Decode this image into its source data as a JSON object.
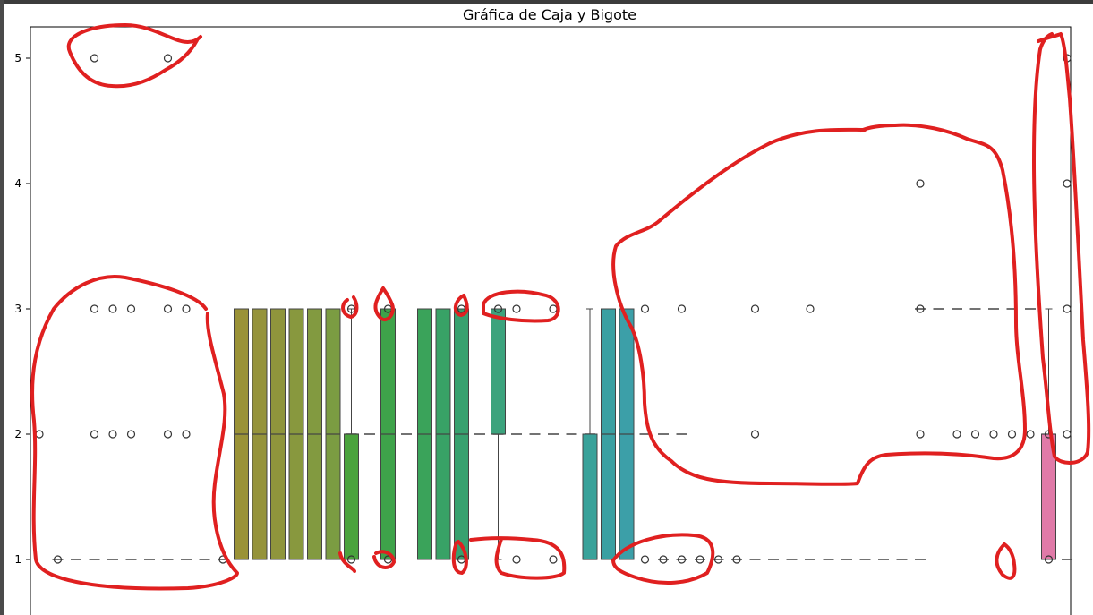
{
  "chart_data": {
    "type": "box",
    "title": "Gráfica de Caja y Bigote",
    "xlabel": "",
    "ylabel": "",
    "ylim": [
      0.75,
      5.25
    ],
    "yticks": [
      1,
      2,
      3,
      4,
      5
    ],
    "n_categories": 57,
    "categories": [],
    "boxes": [
      {
        "index": 11,
        "q1": 1,
        "median": 2,
        "q3": 3,
        "whisker_low": 1,
        "whisker_high": 3,
        "color": "#9a9237"
      },
      {
        "index": 12,
        "q1": 1,
        "median": 2,
        "q3": 3,
        "whisker_low": 1,
        "whisker_high": 3,
        "color": "#95933a"
      },
      {
        "index": 13,
        "q1": 1,
        "median": 2,
        "q3": 3,
        "whisker_low": 1,
        "whisker_high": 3,
        "color": "#8f953c"
      },
      {
        "index": 14,
        "q1": 1,
        "median": 2,
        "q3": 3,
        "whisker_low": 1,
        "whisker_high": 3,
        "color": "#88983e"
      },
      {
        "index": 15,
        "q1": 1,
        "median": 2,
        "q3": 3,
        "whisker_low": 1,
        "whisker_high": 3,
        "color": "#829a40"
      },
      {
        "index": 16,
        "q1": 1,
        "median": 2,
        "q3": 3,
        "whisker_low": 1,
        "whisker_high": 3,
        "color": "#7b9c42"
      },
      {
        "index": 17,
        "q1": 1,
        "median": 2,
        "q3": 2,
        "whisker_low": 1,
        "whisker_high": 3,
        "color": "#4aa33d"
      },
      {
        "index": 19,
        "q1": 1,
        "median": 2,
        "q3": 3,
        "whisker_low": 1,
        "whisker_high": 3,
        "color": "#3ea34a"
      },
      {
        "index": 21,
        "q1": 1,
        "median": 2,
        "q3": 3,
        "whisker_low": 1,
        "whisker_high": 3,
        "color": "#3aa35a"
      },
      {
        "index": 22,
        "q1": 1,
        "median": 2,
        "q3": 3,
        "whisker_low": 1,
        "whisker_high": 3,
        "color": "#38a266"
      },
      {
        "index": 23,
        "q1": 1,
        "median": 2,
        "q3": 3,
        "whisker_low": 1,
        "whisker_high": 3,
        "color": "#38a16f"
      },
      {
        "index": 25,
        "q1": 2,
        "median": 2,
        "q3": 3,
        "whisker_low": 1,
        "whisker_high": 3,
        "color": "#3ca37d"
      },
      {
        "index": 30,
        "q1": 1,
        "median": 1,
        "q3": 2,
        "whisker_low": 1,
        "whisker_high": 3,
        "color": "#39a29a"
      },
      {
        "index": 31,
        "q1": 1,
        "median": 2,
        "q3": 3,
        "whisker_low": 1,
        "whisker_high": 3,
        "color": "#3aa0a2"
      },
      {
        "index": 32,
        "q1": 1,
        "median": 2,
        "q3": 3,
        "whisker_low": 1,
        "whisker_high": 3,
        "color": "#3c9fa8"
      },
      {
        "index": 55,
        "q1": 1,
        "median": 2,
        "q3": 2,
        "whisker_low": 1,
        "whisker_high": 3,
        "color": "#e07aa8"
      }
    ],
    "flat_lines": [
      {
        "y": 1,
        "from_index": 1,
        "to_index": 10
      },
      {
        "y": 2,
        "from_index": 11,
        "to_index": 35
      },
      {
        "y": 1,
        "from_index": 34,
        "to_index": 48
      },
      {
        "y": 3,
        "from_index": 48,
        "to_index": 54
      },
      {
        "y": 1,
        "from_index": 56,
        "to_index": 56
      }
    ],
    "outliers": [
      {
        "index": 0,
        "y": 2
      },
      {
        "index": 1,
        "y": 1
      },
      {
        "index": 3,
        "y": 5
      },
      {
        "index": 3,
        "y": 3
      },
      {
        "index": 3,
        "y": 2
      },
      {
        "index": 4,
        "y": 3
      },
      {
        "index": 4,
        "y": 2
      },
      {
        "index": 5,
        "y": 3
      },
      {
        "index": 5,
        "y": 2
      },
      {
        "index": 7,
        "y": 5
      },
      {
        "index": 7,
        "y": 3
      },
      {
        "index": 7,
        "y": 2
      },
      {
        "index": 8,
        "y": 3
      },
      {
        "index": 8,
        "y": 2
      },
      {
        "index": 10,
        "y": 1
      },
      {
        "index": 17,
        "y": 3
      },
      {
        "index": 17,
        "y": 1
      },
      {
        "index": 19,
        "y": 3
      },
      {
        "index": 19,
        "y": 1
      },
      {
        "index": 23,
        "y": 3
      },
      {
        "index": 23,
        "y": 1
      },
      {
        "index": 25,
        "y": 3
      },
      {
        "index": 26,
        "y": 3
      },
      {
        "index": 26,
        "y": 1
      },
      {
        "index": 28,
        "y": 3
      },
      {
        "index": 28,
        "y": 1
      },
      {
        "index": 33,
        "y": 3
      },
      {
        "index": 33,
        "y": 1
      },
      {
        "index": 34,
        "y": 1
      },
      {
        "index": 35,
        "y": 3
      },
      {
        "index": 35,
        "y": 1
      },
      {
        "index": 36,
        "y": 1
      },
      {
        "index": 37,
        "y": 1
      },
      {
        "index": 38,
        "y": 1
      },
      {
        "index": 39,
        "y": 3
      },
      {
        "index": 39,
        "y": 2
      },
      {
        "index": 42,
        "y": 3
      },
      {
        "index": 48,
        "y": 4
      },
      {
        "index": 48,
        "y": 3
      },
      {
        "index": 48,
        "y": 2
      },
      {
        "index": 50,
        "y": 2
      },
      {
        "index": 51,
        "y": 2
      },
      {
        "index": 52,
        "y": 2
      },
      {
        "index": 53,
        "y": 2
      },
      {
        "index": 54,
        "y": 2
      },
      {
        "index": 55,
        "y": 2
      },
      {
        "index": 55,
        "y": 1
      },
      {
        "index": 56,
        "y": 5
      },
      {
        "index": 56,
        "y": 4
      },
      {
        "index": 56,
        "y": 3
      },
      {
        "index": 56,
        "y": 2
      }
    ],
    "annotations": {
      "type": "freehand-red-outlines",
      "color": "#e02020"
    }
  }
}
